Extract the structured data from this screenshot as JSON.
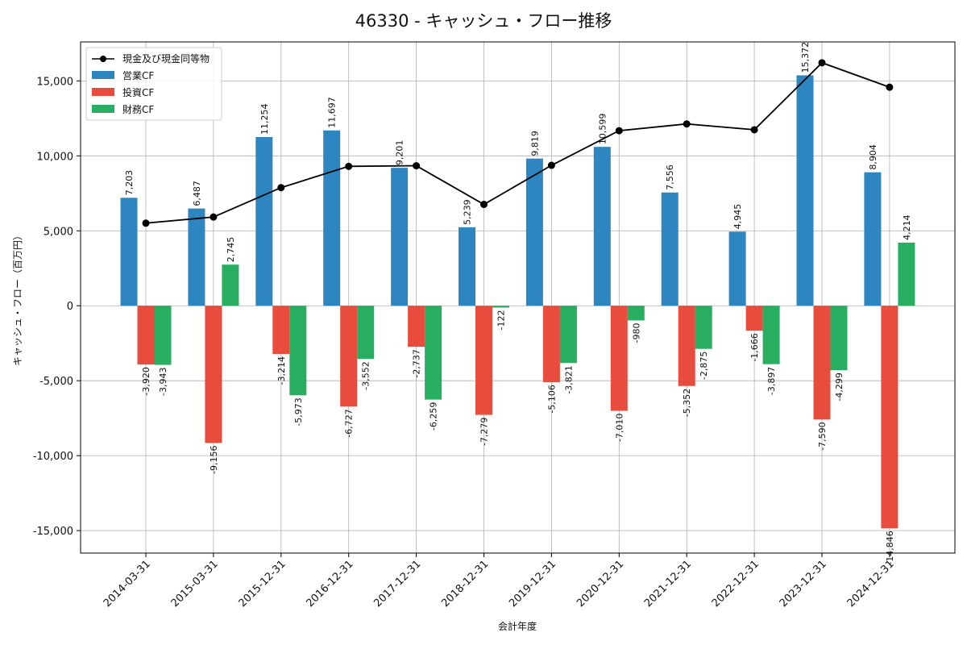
{
  "chart_data": {
    "type": "bar",
    "title": "46330 - キャッシュ・フロー推移",
    "xlabel": "会計年度",
    "ylabel": "キャッシュ・フロー（百万円）",
    "categories": [
      "2014-03-31",
      "2015-03-31",
      "2015-12-31",
      "2016-12-31",
      "2017-12-31",
      "2018-12-31",
      "2019-12-31",
      "2020-12-31",
      "2021-12-31",
      "2022-12-31",
      "2023-12-31",
      "2024-12-31"
    ],
    "series": [
      {
        "name": "営業CF",
        "color": "#2e86c1",
        "values": [
          7203,
          6487,
          11254,
          11697,
          9201,
          5239,
          9819,
          10599,
          7556,
          4945,
          15372,
          8904
        ]
      },
      {
        "name": "投資CF",
        "color": "#e74c3c",
        "values": [
          -3920,
          -9156,
          -3214,
          -6727,
          -2737,
          -7279,
          -5106,
          -7010,
          -5352,
          -1666,
          -7590,
          -14846
        ]
      },
      {
        "name": "財務CF",
        "color": "#27ae60",
        "values": [
          -3943,
          2745,
          -5973,
          -3552,
          -6259,
          -122,
          -3821,
          -980,
          -2875,
          -3897,
          -4299,
          4214
        ]
      }
    ],
    "line_series": {
      "name": "現金及び現金同等物",
      "color": "#000000",
      "values": [
        5510,
        5920,
        7880,
        9300,
        9340,
        6760,
        9370,
        11680,
        12130,
        11740,
        16210,
        14580
      ]
    },
    "ylim": [
      -16500,
      17600
    ],
    "yticks": [
      -15000,
      -10000,
      -5000,
      0,
      5000,
      10000,
      15000
    ],
    "ytick_labels": [
      "-15,000",
      "-10,000",
      "-5,000",
      "0",
      "5,000",
      "10,000",
      "15,000"
    ],
    "grid": true,
    "legend": "top-left"
  }
}
